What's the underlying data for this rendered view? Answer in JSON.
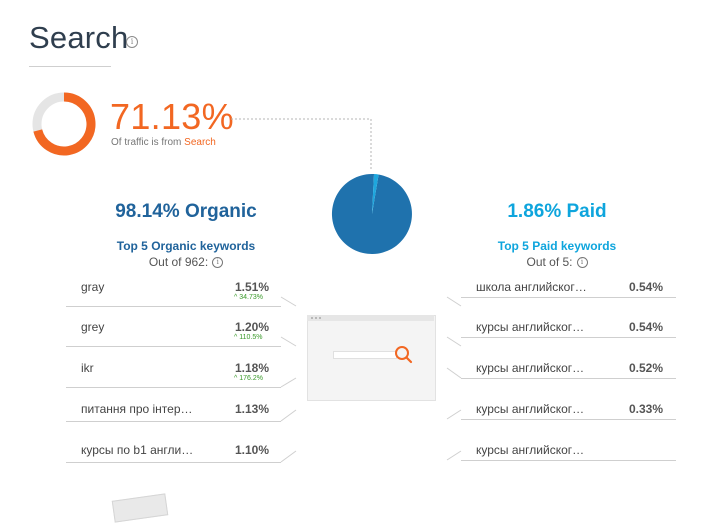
{
  "header": {
    "title": "Search",
    "info_icon": "info-icon"
  },
  "summary": {
    "percent": "71.13%",
    "note_prefix": "Of traffic is from ",
    "note_highlight": "Search",
    "donut_fraction": 0.7113,
    "colors": {
      "accent": "#f26722",
      "track": "#e5e5e5"
    }
  },
  "organic": {
    "headline": "98.14% Organic",
    "subtitle": "Top 5 Organic keywords",
    "out_of": "Out of 962:",
    "color": "#20639b",
    "keywords": [
      {
        "keyword": "gray",
        "share": "1.51%",
        "change": "34.73%"
      },
      {
        "keyword": "grey",
        "share": "1.20%",
        "change": "110.5%"
      },
      {
        "keyword": "ikr",
        "share": "1.18%",
        "change": "176.2%"
      },
      {
        "keyword": "питання про інтер…",
        "share": "1.13%",
        "change": ""
      },
      {
        "keyword": "курсы по b1 англи…",
        "share": "1.10%",
        "change": ""
      }
    ]
  },
  "paid": {
    "headline": "1.86% Paid",
    "subtitle": "Top 5 Paid keywords",
    "out_of": "Out of 5:",
    "color": "#0ea5dd",
    "keywords": [
      {
        "keyword": "школа английског…",
        "share": "0.54%"
      },
      {
        "keyword": "курсы английског…",
        "share": "0.54%"
      },
      {
        "keyword": "курсы английског…",
        "share": "0.52%"
      },
      {
        "keyword": "курсы английског…",
        "share": "0.33%"
      },
      {
        "keyword": "курсы английског…",
        "share": ""
      }
    ]
  },
  "split_pie": {
    "organic_fraction": 0.9814,
    "paid_fraction": 0.0186,
    "colors": {
      "organic": "#1f72ad",
      "paid": "#1ea7de"
    }
  },
  "illustration": {
    "icon": "magnifier-icon",
    "accent": "#f26722"
  }
}
